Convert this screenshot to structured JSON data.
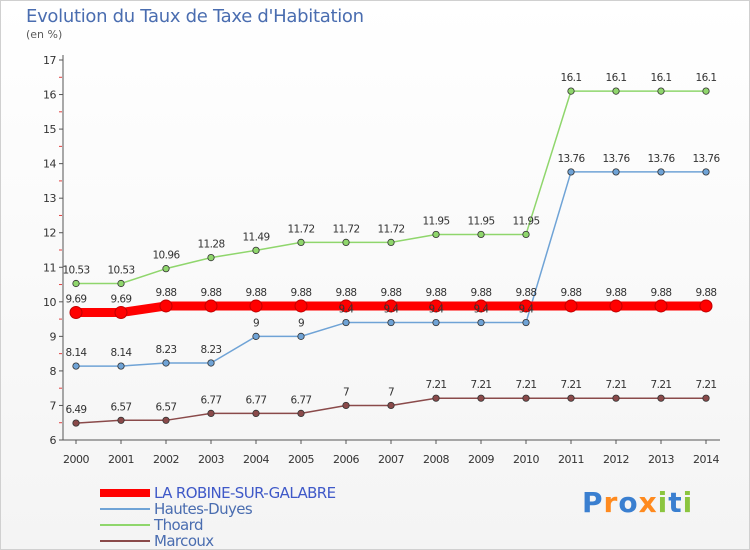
{
  "header": {
    "title": "Evolution du Taux de Taxe d'Habitation",
    "unit": "(en %)"
  },
  "logo": {
    "text": "Proxiti",
    "colors": [
      "#3a7fd0",
      "#ff8a1e",
      "#3a7fd0",
      "#ff8a1e",
      "#8bc53f",
      "#3a7fd0",
      "#8bc53f"
    ]
  },
  "chart_data": {
    "type": "line",
    "title": "Evolution du Taux de Taxe d'Habitation",
    "ylabel": "(en %)",
    "xlabel": "",
    "ylim": [
      6,
      17
    ],
    "yticks": [
      "6",
      "7",
      "8",
      "9",
      "10",
      "11",
      "12",
      "13",
      "14",
      "15",
      "16",
      "17"
    ],
    "categories": [
      "2000",
      "2001",
      "2002",
      "2003",
      "2004",
      "2005",
      "2006",
      "2007",
      "2008",
      "2009",
      "2010",
      "2011",
      "2012",
      "2013",
      "2014"
    ],
    "grid": false,
    "legend_position": "bottom-left",
    "series": [
      {
        "name": "LA ROBINE-SUR-GALABRE",
        "color": "#ff0000",
        "values": [
          9.69,
          9.69,
          9.88,
          9.88,
          9.88,
          9.88,
          9.88,
          9.88,
          9.88,
          9.88,
          9.88,
          9.88,
          9.88,
          9.88,
          9.88
        ],
        "labels": [
          "9.69",
          "9.69",
          "9.88",
          "9.88",
          "9.88",
          "9.88",
          "9.88",
          "9.88",
          "9.88",
          "9.88",
          "9.88",
          "9.88",
          "9.88",
          "9.88",
          "9.88"
        ]
      },
      {
        "name": "Hautes-Duyes",
        "color": "#6fa3d6",
        "values": [
          8.14,
          8.14,
          8.23,
          8.23,
          9,
          9,
          9.4,
          9.4,
          9.4,
          9.4,
          9.4,
          13.76,
          13.76,
          13.76,
          13.76
        ],
        "labels": [
          "8.14",
          "8.14",
          "8.23",
          "8.23",
          "9",
          "9",
          "9.4",
          "9.4",
          "9.4",
          "9.4",
          "9.4",
          "13.76",
          "13.76",
          "13.76",
          "13.76"
        ]
      },
      {
        "name": "Thoard",
        "color": "#8fd66c",
        "values": [
          10.53,
          10.53,
          10.96,
          11.28,
          11.49,
          11.72,
          11.72,
          11.72,
          11.95,
          11.95,
          11.95,
          16.1,
          16.1,
          16.1,
          16.1
        ],
        "labels": [
          "10.53",
          "10.53",
          "10.96",
          "11.28",
          "11.49",
          "11.72",
          "11.72",
          "11.72",
          "11.95",
          "11.95",
          "11.95",
          "16.1",
          "16.1",
          "16.1",
          "16.1"
        ]
      },
      {
        "name": "Marcoux",
        "color": "#8a4a4a",
        "values": [
          6.49,
          6.57,
          6.57,
          6.77,
          6.77,
          6.77,
          7,
          7,
          7.21,
          7.21,
          7.21,
          7.21,
          7.21,
          7.21,
          7.21
        ],
        "labels": [
          "6.49",
          "6.57",
          "6.57",
          "6.77",
          "6.77",
          "6.77",
          "7",
          "7",
          "7.21",
          "7.21",
          "7.21",
          "7.21",
          "7.21",
          "7.21",
          "7.21"
        ]
      }
    ]
  }
}
